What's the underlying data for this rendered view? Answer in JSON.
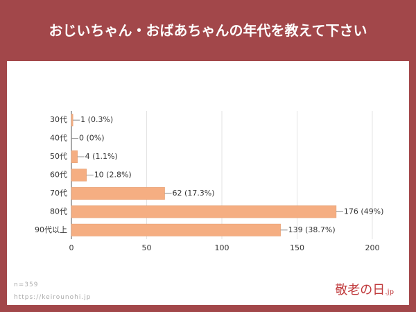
{
  "chart_data": {
    "type": "bar",
    "orientation": "horizontal",
    "title": "おじいちゃん・おばあちゃんの年代を教えて下さい",
    "categories": [
      "30代",
      "40代",
      "50代",
      "60代",
      "70代",
      "80代",
      "90代以上"
    ],
    "values": [
      1,
      0,
      4,
      10,
      62,
      176,
      139
    ],
    "value_labels": [
      "1 (0.3%)",
      "0 (0%)",
      "4 (1.1%)",
      "10 (2.8%)",
      "62 (17.3%)",
      "176 (49%)",
      "139 (38.7%)"
    ],
    "color": "#f5ae82",
    "xlim": [
      0,
      200
    ],
    "xticks": [
      0,
      50,
      100,
      150,
      200
    ],
    "grid": true
  },
  "footer": {
    "sample": "n=359",
    "url": "https://keirounohi.jp",
    "logo": "敬老の日",
    "logo_suffix": ".jp"
  }
}
